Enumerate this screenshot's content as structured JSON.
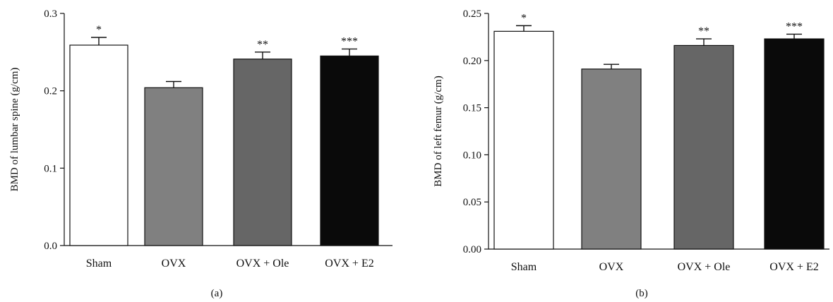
{
  "chart_data": [
    {
      "type": "bar",
      "panel_label": "(a)",
      "categories": [
        "Sham",
        "OVX",
        "OVX + Ole",
        "OVX + E2"
      ],
      "values": [
        0.259,
        0.204,
        0.241,
        0.245
      ],
      "errors": [
        0.01,
        0.008,
        0.009,
        0.009
      ],
      "significance": [
        "*",
        "",
        "**",
        "***"
      ],
      "fill_colors": [
        "#ffffff",
        "#808080",
        "#666666",
        "#0a0a0a"
      ],
      "ylabel": "BMD of lumbar spine (g/cm)",
      "ylim": [
        0,
        0.3
      ],
      "yticks": [
        0.0,
        0.1,
        0.2,
        0.3
      ],
      "ytick_labels": [
        "0.0",
        "0.1",
        "0.2",
        "0.3"
      ]
    },
    {
      "type": "bar",
      "panel_label": "(b)",
      "categories": [
        "Sham",
        "OVX",
        "OVX + Ole",
        "OVX + E2"
      ],
      "values": [
        0.231,
        0.191,
        0.216,
        0.223
      ],
      "errors": [
        0.006,
        0.005,
        0.007,
        0.005
      ],
      "significance": [
        "*",
        "",
        "**",
        "***"
      ],
      "fill_colors": [
        "#ffffff",
        "#808080",
        "#666666",
        "#0a0a0a"
      ],
      "ylabel": "BMD of left femur (g/cm)",
      "ylim": [
        0,
        0.25
      ],
      "yticks": [
        0.0,
        0.05,
        0.1,
        0.15,
        0.2,
        0.25
      ],
      "ytick_labels": [
        "0.00",
        "0.05",
        "0.10",
        "0.15",
        "0.20",
        "0.25"
      ]
    }
  ]
}
